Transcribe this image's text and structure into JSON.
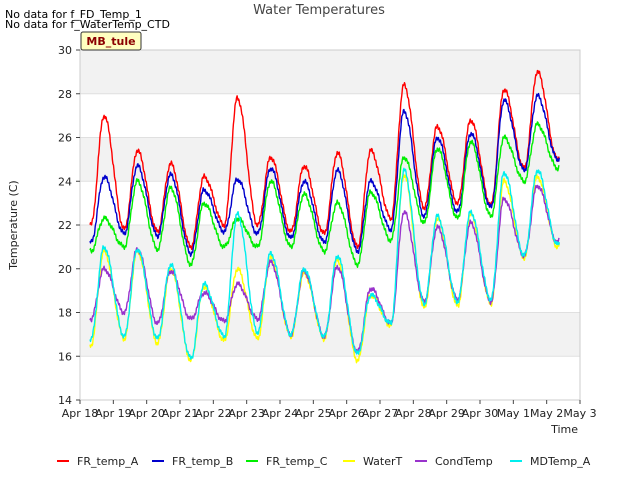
{
  "messages": [
    "No data for f_FD_Temp_1",
    "No data for f_WaterTemp_CTD"
  ],
  "badge": "MB_tule",
  "chart_data": {
    "type": "line",
    "title": "Water Temperatures",
    "xlabel": "Time",
    "ylabel": "Temperature (C)",
    "ylim": [
      14,
      30
    ],
    "yticks": [
      14,
      16,
      18,
      20,
      22,
      24,
      26,
      28,
      30
    ],
    "xlim": [
      "2015-04-18",
      "2015-05-03"
    ],
    "xticks": [
      "Apr 18",
      "Apr 19",
      "Apr 20",
      "Apr 21",
      "Apr 22",
      "Apr 23",
      "Apr 24",
      "Apr 25",
      "Apr 26",
      "Apr 27",
      "Apr 28",
      "Apr 29",
      "Apr 30",
      "May 1",
      "May 2",
      "May 3"
    ],
    "grid": true,
    "legend": "bottom",
    "series": [
      {
        "name": "FR_temp_A",
        "color": "#ff0000",
        "min": [
          22.0,
          21.8,
          21.7,
          21.0,
          22.0,
          22.0,
          21.7,
          21.6,
          21.0,
          22.3,
          22.8,
          23.0,
          22.9,
          24.6,
          25.0
        ],
        "max": [
          27.0,
          25.4,
          24.8,
          24.2,
          27.8,
          25.1,
          24.7,
          25.3,
          25.4,
          28.4,
          26.5,
          26.8,
          28.2,
          29.0
        ]
      },
      {
        "name": "FR_temp_B",
        "color": "#0000cc",
        "min": [
          21.2,
          21.6,
          21.5,
          20.7,
          21.7,
          21.6,
          21.4,
          21.2,
          20.8,
          21.8,
          22.4,
          22.6,
          22.8,
          24.5,
          25.0
        ],
        "max": [
          24.2,
          24.7,
          24.3,
          23.6,
          24.1,
          24.6,
          24.0,
          24.5,
          24.0,
          27.2,
          26.0,
          26.2,
          27.7,
          27.9
        ]
      },
      {
        "name": "FR_temp_C",
        "color": "#00ee00",
        "min": [
          20.8,
          21.0,
          20.9,
          20.2,
          21.0,
          21.0,
          21.0,
          20.8,
          20.2,
          21.3,
          22.1,
          22.3,
          22.4,
          24.0,
          24.6
        ],
        "max": [
          22.3,
          24.0,
          23.7,
          23.0,
          22.3,
          24.0,
          23.4,
          23.0,
          23.5,
          25.1,
          25.5,
          25.8,
          26.0,
          26.6
        ]
      },
      {
        "name": "WaterT",
        "color": "#ffff00",
        "min": [
          16.5,
          16.8,
          16.6,
          15.8,
          16.7,
          16.8,
          16.9,
          16.8,
          15.8,
          17.4,
          18.2,
          18.3,
          18.4,
          20.5,
          21.0
        ],
        "max": [
          20.8,
          20.8,
          20.0,
          19.2,
          20.0,
          20.5,
          19.8,
          20.4,
          18.8,
          24.3,
          22.3,
          22.5,
          24.0,
          24.2
        ]
      },
      {
        "name": "CondTemp",
        "color": "#9933cc",
        "min": [
          17.7,
          18.0,
          17.5,
          17.7,
          17.6,
          17.7,
          17.0,
          16.9,
          16.2,
          17.5,
          18.5,
          18.6,
          18.5,
          20.6,
          21.2
        ],
        "max": [
          20.0,
          20.9,
          19.9,
          18.9,
          19.3,
          20.3,
          19.9,
          20.1,
          19.1,
          22.6,
          21.9,
          22.1,
          23.2,
          23.8
        ]
      },
      {
        "name": "MDTemp_A",
        "color": "#00eeee",
        "min": [
          16.8,
          16.9,
          16.8,
          15.9,
          16.9,
          17.1,
          17.0,
          16.9,
          16.1,
          17.5,
          18.4,
          18.5,
          18.6,
          20.6,
          21.1
        ],
        "max": [
          21.0,
          20.9,
          20.2,
          19.3,
          22.5,
          20.7,
          20.0,
          20.6,
          18.8,
          24.5,
          22.4,
          22.6,
          24.4,
          24.5
        ]
      }
    ]
  }
}
